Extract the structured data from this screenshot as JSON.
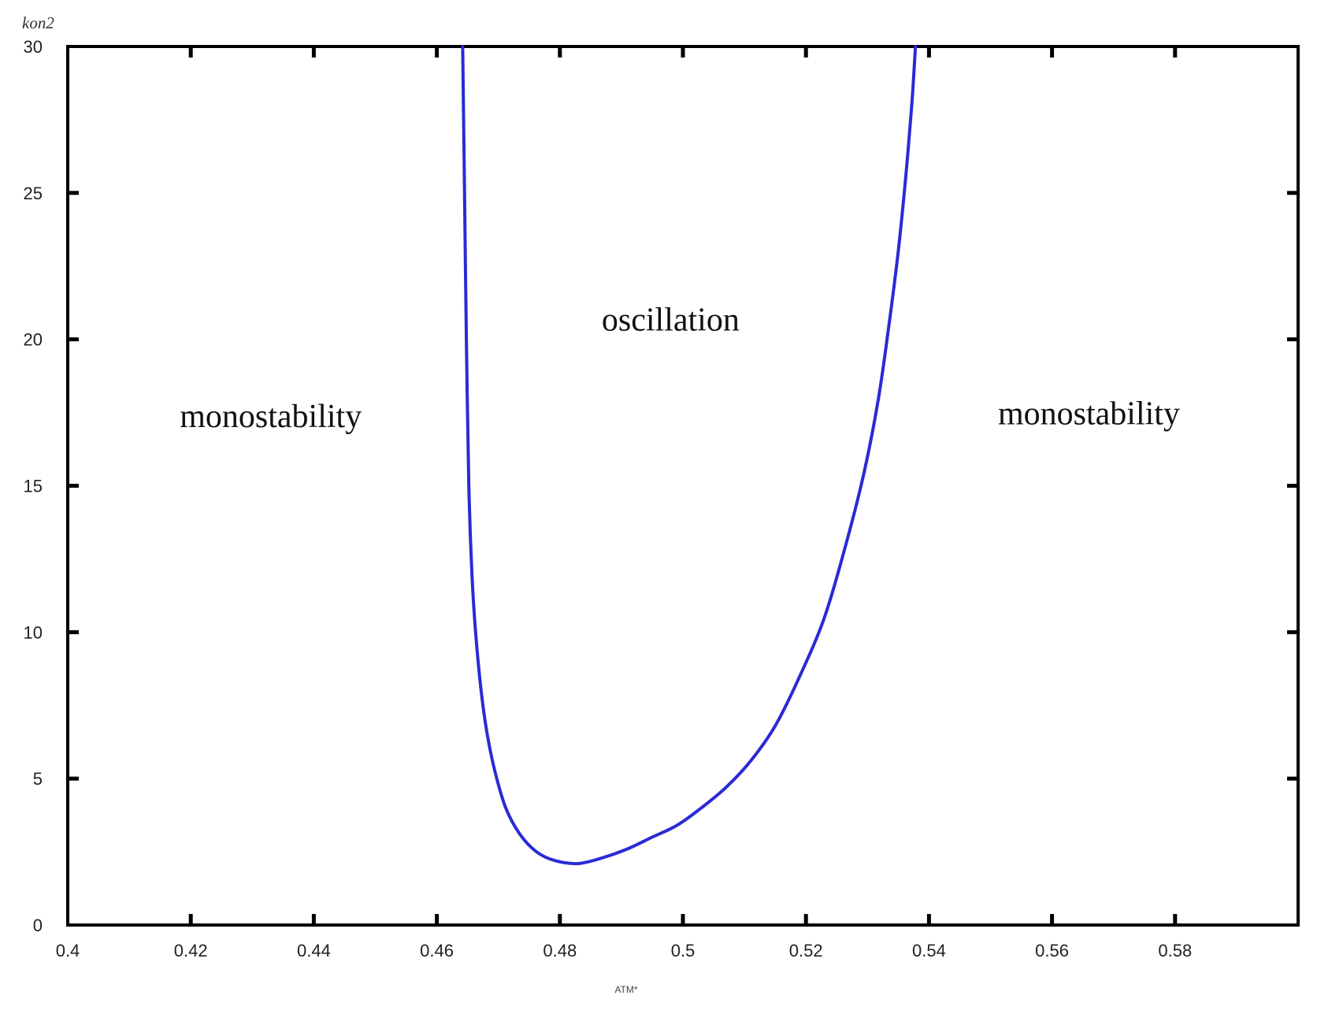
{
  "chart_data": {
    "type": "line",
    "title": "",
    "xlabel": "ATM*",
    "ylabel": "kon2",
    "xlim": [
      0.4,
      0.6
    ],
    "ylim": [
      0,
      30
    ],
    "x_ticks": [
      "0.4",
      "0.42",
      "0.44",
      "0.46",
      "0.48",
      "0.5",
      "0.52",
      "0.54",
      "0.56",
      "0.58"
    ],
    "y_ticks": [
      "0",
      "5",
      "10",
      "15",
      "20",
      "25",
      "30"
    ],
    "grid": false,
    "line_color": "#2a2ad6",
    "annotations": [
      {
        "text": "monostability",
        "x": 0.433,
        "y": 17.0
      },
      {
        "text": "oscillation",
        "x": 0.498,
        "y": 20.3
      },
      {
        "text": "monostability",
        "x": 0.566,
        "y": 17.1
      }
    ],
    "series": [
      {
        "x": [
          0.4642,
          0.4645,
          0.4648,
          0.4652,
          0.4657,
          0.4663,
          0.4672,
          0.4682,
          0.4695,
          0.4712,
          0.4735,
          0.4762,
          0.4792,
          0.483,
          0.487,
          0.491,
          0.495,
          0.499,
          0.503,
          0.507,
          0.511,
          0.515,
          0.519,
          0.523,
          0.5265,
          0.5295,
          0.5318,
          0.5335,
          0.535,
          0.5362,
          0.5372,
          0.5378
        ],
        "y": [
          30.0,
          25.0,
          20.0,
          15.0,
          12.0,
          10.0,
          8.0,
          6.5,
          5.2,
          4.0,
          3.1,
          2.5,
          2.2,
          2.1,
          2.3,
          2.6,
          3.0,
          3.4,
          4.0,
          4.7,
          5.6,
          6.8,
          8.5,
          10.5,
          13.0,
          15.5,
          18.0,
          20.5,
          23.0,
          25.5,
          28.0,
          30.0
        ]
      }
    ]
  }
}
